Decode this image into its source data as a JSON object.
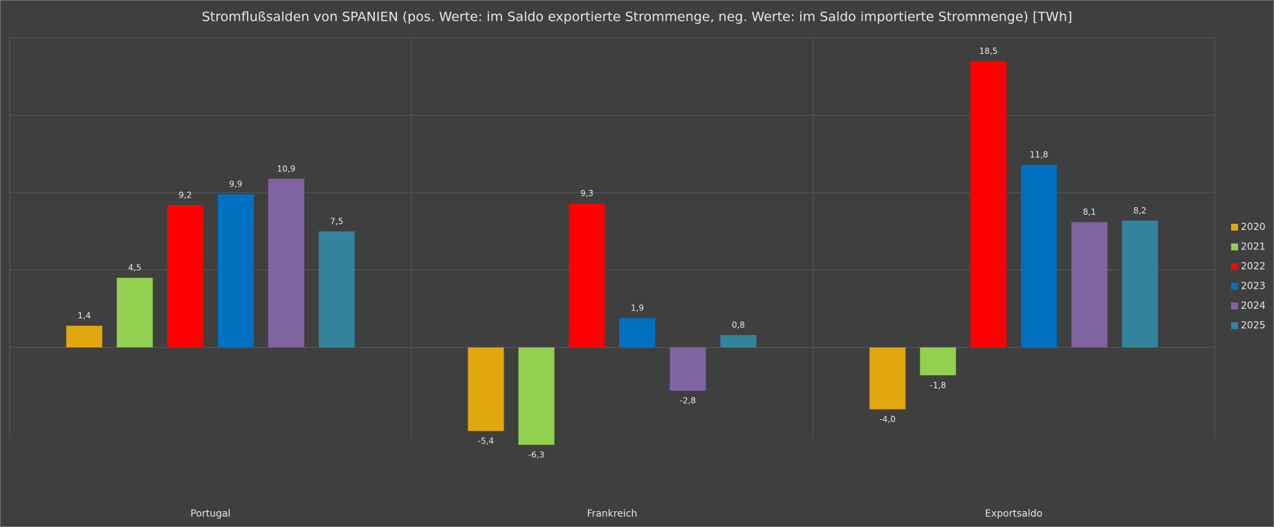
{
  "chart_data": {
    "type": "bar",
    "title": "Stromflußsalden von SPANIEN (pos. Werte: im Saldo exportierte Strommenge, neg. Werte: im Saldo importierte Strommenge) [TWh]",
    "categories": [
      "Portugal",
      "Frankreich",
      "Exportsaldo"
    ],
    "series": [
      {
        "name": "2020",
        "color": "#e0a80c",
        "values": [
          1.4,
          -5.4,
          -4.0
        ],
        "value_labels": [
          "1,4",
          "-5,4",
          "-4,0"
        ]
      },
      {
        "name": "2021",
        "color": "#92d050",
        "values": [
          4.5,
          -6.3,
          -1.8
        ],
        "value_labels": [
          "4,5",
          "-6,3",
          "-1,8"
        ]
      },
      {
        "name": "2022",
        "color": "#ff0000",
        "values": [
          9.2,
          9.3,
          18.5
        ],
        "value_labels": [
          "9,2",
          "9,3",
          "18,5"
        ]
      },
      {
        "name": "2023",
        "color": "#0070c0",
        "values": [
          9.9,
          1.9,
          11.8
        ],
        "value_labels": [
          "9,9",
          "1,9",
          "11,8"
        ]
      },
      {
        "name": "2024",
        "color": "#8064a2",
        "values": [
          10.9,
          -2.8,
          8.1
        ],
        "value_labels": [
          "10,9",
          "-2,8",
          "8,1"
        ]
      },
      {
        "name": "2025",
        "color": "#31849b",
        "values": [
          7.5,
          0.8,
          8.2
        ],
        "value_labels": [
          "7,5",
          "0,8",
          "8,2"
        ]
      }
    ],
    "ylim": [
      -10,
      20
    ],
    "yticks": [
      0,
      5,
      10,
      15,
      20
    ],
    "grid": true,
    "legend": "right"
  }
}
